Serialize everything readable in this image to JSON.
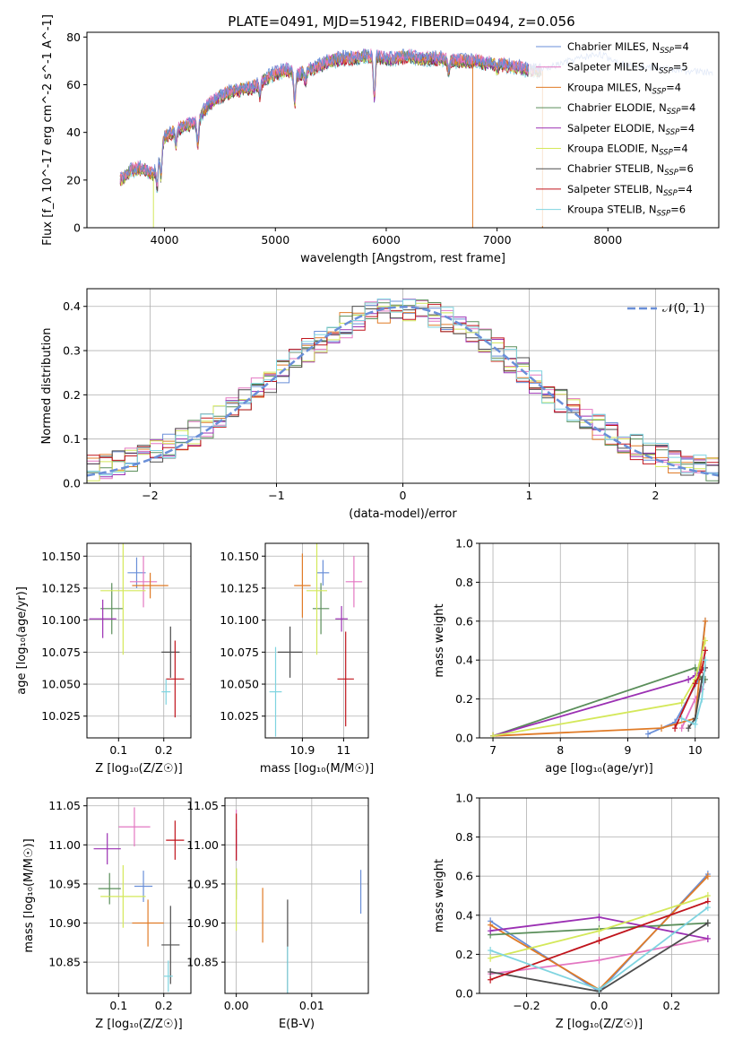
{
  "chart_data": [
    {
      "id": "spectrum",
      "type": "line",
      "title": "PLATE=0491, MJD=51942, FIBERID=0494, z=0.056",
      "xlabel": "wavelength [Angstrom, rest frame]",
      "ylabel": "Flux [f_λ 10^-17 erg cm^-2 s^-1 A^-1]",
      "xlim": [
        3300,
        9000
      ],
      "ylim": [
        0,
        82
      ],
      "xticks": [
        4000,
        5000,
        6000,
        7000,
        8000
      ],
      "yticks": [
        0,
        20,
        40,
        60,
        80
      ],
      "grid": false,
      "legend_position": "right",
      "continuum_nodes": {
        "x": [
          3600,
          3700,
          3800,
          3900,
          4000,
          4100,
          4200,
          4300,
          4400,
          4500,
          4600,
          4700,
          4800,
          4900,
          5000,
          5100,
          5200,
          5300,
          5400,
          5500,
          5600,
          5700,
          5800,
          5900,
          6000,
          6100,
          6200,
          6300,
          6400,
          6500,
          6600,
          6700,
          6800,
          6900,
          7000,
          7100,
          7200,
          7300,
          7400
        ],
        "y": [
          20,
          24,
          25,
          22,
          38,
          41,
          43,
          45,
          52,
          55,
          57,
          58,
          59,
          62,
          65,
          66,
          64,
          66,
          68,
          70,
          71,
          71,
          72,
          72,
          71,
          71,
          72,
          71,
          71,
          71,
          70,
          70,
          70,
          69,
          69,
          68,
          67,
          66,
          66
        ]
      },
      "absorption_features": [
        {
          "x": 3934,
          "depth": 10
        },
        {
          "x": 3968,
          "depth": 11
        },
        {
          "x": 4102,
          "depth": 6
        },
        {
          "x": 4300,
          "depth": 10
        },
        {
          "x": 4861,
          "depth": 5
        },
        {
          "x": 5175,
          "depth": 12
        },
        {
          "x": 5270,
          "depth": 4
        },
        {
          "x": 5893,
          "depth": 18
        },
        {
          "x": 6563,
          "depth": 5
        },
        {
          "x": 7000,
          "depth": 3
        }
      ],
      "extended_series": {
        "name": "Chabrier MILES",
        "x_range": [
          7400,
          8950
        ],
        "y": [
          66,
          70,
          73,
          68,
          67,
          66,
          65
        ]
      },
      "dropouts": [
        {
          "x": 3900,
          "y": 0
        },
        {
          "x": 6780,
          "y": 0
        },
        {
          "x": 7410,
          "y": 0
        }
      ],
      "series": [
        {
          "name": "Chabrier MILES",
          "nssp": "4",
          "color": "#6a8fd8"
        },
        {
          "name": "Salpeter MILES",
          "nssp": "5",
          "color": "#e377c2"
        },
        {
          "name": "Kroupa MILES",
          "nssp": "4",
          "color": "#e07b27"
        },
        {
          "name": "Chabrier ELODIE",
          "nssp": "4",
          "color": "#5a8e5a"
        },
        {
          "name": "Salpeter ELODIE",
          "nssp": "4",
          "color": "#9b30b3"
        },
        {
          "name": "Kroupa ELODIE",
          "nssp": "4",
          "color": "#d4e85a"
        },
        {
          "name": "Chabrier STELIB",
          "nssp": "6",
          "color": "#4d4d4d"
        },
        {
          "name": "Salpeter STELIB",
          "nssp": "4",
          "color": "#c0141c"
        },
        {
          "name": "Kroupa STELIB",
          "nssp": "6",
          "color": "#7fd4e0"
        }
      ]
    },
    {
      "id": "residuals",
      "type": "step",
      "xlabel": "(data-model)/error",
      "ylabel": "Normed distribution",
      "xlim": [
        -2.5,
        2.5
      ],
      "ylim": [
        0,
        0.44
      ],
      "xticks": [
        -2,
        -1,
        0,
        1,
        2
      ],
      "yticks": [
        0.0,
        0.1,
        0.2,
        0.3,
        0.4
      ],
      "grid": true,
      "legend_position": "top-right",
      "reference_curve": {
        "name": "𝒩(0, 1)",
        "mean": 0,
        "sigma": 1,
        "color": "#6a8fd8"
      },
      "bin_width": 0.1,
      "histogram_noise": 0.03
    },
    {
      "id": "age-vs-Z",
      "type": "errorbar",
      "xlabel": "Z [log₁₀(Z/Z☉)]",
      "ylabel": "age  [log₁₀(age/yr)]",
      "xlim": [
        0.03,
        0.26
      ],
      "ylim": [
        10.008,
        10.16
      ],
      "xticks": [
        0.1,
        0.2
      ],
      "yticks": [
        10.025,
        10.05,
        10.075,
        10.1,
        10.125,
        10.15
      ],
      "ytick_labels": [
        "10.025",
        "10.050",
        "10.075",
        "10.100",
        "10.125",
        "10.150"
      ],
      "grid": true,
      "points": [
        {
          "series": "Chabrier MILES",
          "x": 0.14,
          "y": 10.137,
          "xerr": 0.02,
          "yerr": 0.012
        },
        {
          "series": "Salpeter MILES",
          "x": 0.155,
          "y": 10.13,
          "xerr": 0.03,
          "yerr": 0.02
        },
        {
          "series": "Kroupa MILES",
          "x": 0.17,
          "y": 10.127,
          "xerr": 0.04,
          "yerr": 0.01
        },
        {
          "series": "Chabrier ELODIE",
          "x": 0.085,
          "y": 10.109,
          "xerr": 0.025,
          "yerr": 0.02
        },
        {
          "series": "Salpeter ELODIE",
          "x": 0.065,
          "y": 10.101,
          "xerr": 0.03,
          "yerr": 0.015
        },
        {
          "series": "Kroupa ELODIE",
          "x": 0.11,
          "y": 10.123,
          "xerr": 0.05,
          "yerr": 0.05
        },
        {
          "series": "Chabrier STELIB",
          "x": 0.215,
          "y": 10.075,
          "xerr": 0.02,
          "yerr": 0.02
        },
        {
          "series": "Salpeter STELIB",
          "x": 0.225,
          "y": 10.054,
          "xerr": 0.02,
          "yerr": 0.03
        },
        {
          "series": "Kroupa STELIB",
          "x": 0.205,
          "y": 10.044,
          "xerr": 0.01,
          "yerr": 0.01
        }
      ]
    },
    {
      "id": "age-vs-mass",
      "type": "errorbar",
      "xlabel": "mass [log₁₀(M/M☉)]",
      "ylabel": "",
      "xlim": [
        10.81,
        11.06
      ],
      "ylim": [
        10.008,
        10.16
      ],
      "xticks": [
        10.9,
        11.0
      ],
      "yticks": [
        10.025,
        10.05,
        10.075,
        10.1,
        10.125,
        10.15
      ],
      "ytick_labels": [
        "10.025",
        "10.050",
        "10.075",
        "10.100",
        "10.125",
        "10.150"
      ],
      "grid": true,
      "points": [
        {
          "series": "Chabrier MILES",
          "x": 10.95,
          "y": 10.137,
          "xerr": 0.015,
          "yerr": 0.01
        },
        {
          "series": "Salpeter MILES",
          "x": 11.025,
          "y": 10.13,
          "xerr": 0.02,
          "yerr": 0.02
        },
        {
          "series": "Kroupa MILES",
          "x": 10.9,
          "y": 10.127,
          "xerr": 0.02,
          "yerr": 0.025
        },
        {
          "series": "Chabrier ELODIE",
          "x": 10.945,
          "y": 10.109,
          "xerr": 0.02,
          "yerr": 0.02
        },
        {
          "series": "Salpeter ELODIE",
          "x": 10.995,
          "y": 10.101,
          "xerr": 0.015,
          "yerr": 0.01
        },
        {
          "series": "Kroupa ELODIE",
          "x": 10.935,
          "y": 10.123,
          "xerr": 0.025,
          "yerr": 0.05
        },
        {
          "series": "Chabrier STELIB",
          "x": 10.87,
          "y": 10.075,
          "xerr": 0.03,
          "yerr": 0.02
        },
        {
          "series": "Salpeter STELIB",
          "x": 11.005,
          "y": 10.054,
          "xerr": 0.02,
          "yerr": 0.037
        },
        {
          "series": "Kroupa STELIB",
          "x": 10.835,
          "y": 10.044,
          "xerr": 0.015,
          "yerr": 0.035
        }
      ]
    },
    {
      "id": "weight-vs-age",
      "type": "line",
      "xlabel": "age  [log₁₀(age/yr)]",
      "ylabel": "mass weight",
      "xlim": [
        6.8,
        10.35
      ],
      "ylim": [
        0,
        1.0
      ],
      "xticks": [
        7,
        8,
        9,
        10
      ],
      "yticks": [
        0.0,
        0.2,
        0.4,
        0.6,
        0.8,
        1.0
      ],
      "grid": true,
      "series": [
        {
          "name": "Chabrier MILES",
          "x": [
            9.3,
            9.7,
            10.05,
            10.15
          ],
          "y": [
            0.02,
            0.08,
            0.3,
            0.6
          ]
        },
        {
          "name": "Salpeter MILES",
          "x": [
            9.8,
            10.0,
            10.1,
            10.15
          ],
          "y": [
            0.05,
            0.2,
            0.25,
            0.3
          ]
        },
        {
          "name": "Kroupa MILES",
          "x": [
            7.0,
            9.5,
            10.0,
            10.15
          ],
          "y": [
            0.01,
            0.05,
            0.1,
            0.6
          ]
        },
        {
          "name": "Chabrier ELODIE",
          "x": [
            7.0,
            10.0,
            10.1,
            10.15
          ],
          "y": [
            0.01,
            0.36,
            0.3,
            0.3
          ]
        },
        {
          "name": "Salpeter ELODIE",
          "x": [
            7.0,
            9.9,
            10.0,
            10.15
          ],
          "y": [
            0.01,
            0.3,
            0.32,
            0.36
          ]
        },
        {
          "name": "Kroupa ELODIE",
          "x": [
            7.0,
            9.8,
            10.0,
            10.15
          ],
          "y": [
            0.01,
            0.18,
            0.3,
            0.5
          ]
        },
        {
          "name": "Chabrier STELIB",
          "x": [
            9.9,
            10.0,
            10.1,
            10.15
          ],
          "y": [
            0.05,
            0.1,
            0.3,
            0.36
          ]
        },
        {
          "name": "Salpeter STELIB",
          "x": [
            9.7,
            10.0,
            10.1,
            10.15
          ],
          "y": [
            0.05,
            0.28,
            0.35,
            0.45
          ]
        },
        {
          "name": "Kroupa STELIB",
          "x": [
            9.8,
            10.0,
            10.1,
            10.15
          ],
          "y": [
            0.1,
            0.07,
            0.2,
            0.4
          ]
        }
      ]
    },
    {
      "id": "mass-vs-Z",
      "type": "errorbar",
      "xlabel": "Z [log₁₀(Z/Z☉)]",
      "ylabel": "mass [log₁₀(M/M☉)]",
      "xlim": [
        0.03,
        0.26
      ],
      "ylim": [
        10.81,
        11.06
      ],
      "xticks": [
        0.1,
        0.2
      ],
      "yticks": [
        10.85,
        10.9,
        10.95,
        11.0,
        11.05
      ],
      "ytick_labels": [
        "10.85",
        "10.90",
        "10.95",
        "11.00",
        "11.05"
      ],
      "grid": true,
      "points": [
        {
          "series": "Chabrier MILES",
          "x": 0.155,
          "y": 10.947,
          "xerr": 0.02,
          "yerr": 0.02
        },
        {
          "series": "Salpeter MILES",
          "x": 0.135,
          "y": 11.023,
          "xerr": 0.035,
          "yerr": 0.025
        },
        {
          "series": "Kroupa MILES",
          "x": 0.165,
          "y": 10.9,
          "xerr": 0.035,
          "yerr": 0.03
        },
        {
          "series": "Chabrier ELODIE",
          "x": 0.08,
          "y": 10.944,
          "xerr": 0.025,
          "yerr": 0.02
        },
        {
          "series": "Salpeter ELODIE",
          "x": 0.075,
          "y": 10.995,
          "xerr": 0.03,
          "yerr": 0.02
        },
        {
          "series": "Kroupa ELODIE",
          "x": 0.11,
          "y": 10.934,
          "xerr": 0.05,
          "yerr": 0.04
        },
        {
          "series": "Chabrier STELIB",
          "x": 0.215,
          "y": 10.872,
          "xerr": 0.02,
          "yerr": 0.05
        },
        {
          "series": "Salpeter STELIB",
          "x": 0.225,
          "y": 11.006,
          "xerr": 0.02,
          "yerr": 0.025
        },
        {
          "series": "Kroupa STELIB",
          "x": 0.21,
          "y": 10.832,
          "xerr": 0.01,
          "yerr": 0.02
        }
      ]
    },
    {
      "id": "mass-vs-ebv",
      "type": "errorbar",
      "xlabel": "E(B-V)",
      "ylabel": "",
      "xlim": [
        -0.0015,
        0.0175
      ],
      "ylim": [
        10.81,
        11.06
      ],
      "xticks": [
        0.0,
        0.01
      ],
      "xtick_labels": [
        "0.00",
        "0.01"
      ],
      "yticks": [
        10.85,
        10.9,
        10.95,
        11.0,
        11.05
      ],
      "ytick_labels": [
        "10.85",
        "10.90",
        "10.95",
        "11.00",
        "11.05"
      ],
      "grid": true,
      "points": [
        {
          "series": "Chabrier MILES",
          "x": 0.0165,
          "y": 10.94,
          "xerr": 0.0,
          "yerr": 0.028
        },
        {
          "series": "Salpeter MILES",
          "x": 0.0,
          "y": 11.02,
          "xerr": 0.0,
          "yerr": 0.025
        },
        {
          "series": "Kroupa MILES",
          "x": 0.0035,
          "y": 10.91,
          "xerr": 0.0,
          "yerr": 0.035
        },
        {
          "series": "Chabrier ELODIE",
          "x": 0.0,
          "y": 10.95,
          "xerr": 0.0,
          "yerr": 0.02
        },
        {
          "series": "Salpeter ELODIE",
          "x": 0.0,
          "y": 11.0,
          "xerr": 0.0,
          "yerr": 0.02
        },
        {
          "series": "Kroupa ELODIE",
          "x": 0.0,
          "y": 10.93,
          "xerr": 0.0,
          "yerr": 0.04
        },
        {
          "series": "Chabrier STELIB",
          "x": 0.0068,
          "y": 10.87,
          "xerr": 0.0,
          "yerr": 0.06
        },
        {
          "series": "Salpeter STELIB",
          "x": 0.0,
          "y": 11.01,
          "xerr": 0.0,
          "yerr": 0.03
        },
        {
          "series": "Kroupa STELIB",
          "x": 0.0068,
          "y": 10.84,
          "xerr": 0.0,
          "yerr": 0.03
        }
      ]
    },
    {
      "id": "weight-vs-Z",
      "type": "line",
      "xlabel": "Z [log₁₀(Z/Z☉)]",
      "ylabel": "mass weight",
      "xlim": [
        -0.33,
        0.33
      ],
      "ylim": [
        0,
        1.0
      ],
      "xticks": [
        -0.2,
        0.0,
        0.2
      ],
      "xtick_labels": [
        "−0.2",
        "0.0",
        "0.2"
      ],
      "yticks": [
        0.0,
        0.2,
        0.4,
        0.6,
        0.8,
        1.0
      ],
      "grid": true,
      "series": [
        {
          "name": "Chabrier MILES",
          "x": [
            -0.3,
            0.0,
            0.3
          ],
          "y": [
            0.37,
            0.01,
            0.61
          ]
        },
        {
          "name": "Salpeter MILES",
          "x": [
            -0.3,
            0.0,
            0.3
          ],
          "y": [
            0.1,
            0.17,
            0.28
          ]
        },
        {
          "name": "Kroupa MILES",
          "x": [
            -0.3,
            0.0,
            0.3
          ],
          "y": [
            0.35,
            0.02,
            0.6
          ]
        },
        {
          "name": "Chabrier ELODIE",
          "x": [
            -0.3,
            0.0,
            0.3
          ],
          "y": [
            0.3,
            0.33,
            0.36
          ]
        },
        {
          "name": "Salpeter ELODIE",
          "x": [
            -0.3,
            0.0,
            0.3
          ],
          "y": [
            0.32,
            0.39,
            0.28
          ]
        },
        {
          "name": "Kroupa ELODIE",
          "x": [
            -0.3,
            0.0,
            0.3
          ],
          "y": [
            0.18,
            0.32,
            0.5
          ]
        },
        {
          "name": "Chabrier STELIB",
          "x": [
            -0.3,
            0.0,
            0.3
          ],
          "y": [
            0.11,
            0.01,
            0.36
          ]
        },
        {
          "name": "Salpeter STELIB",
          "x": [
            -0.3,
            0.0,
            0.3
          ],
          "y": [
            0.07,
            0.27,
            0.47
          ]
        },
        {
          "name": "Kroupa STELIB",
          "x": [
            -0.3,
            0.0,
            0.3
          ],
          "y": [
            0.22,
            0.02,
            0.44
          ]
        }
      ]
    }
  ]
}
